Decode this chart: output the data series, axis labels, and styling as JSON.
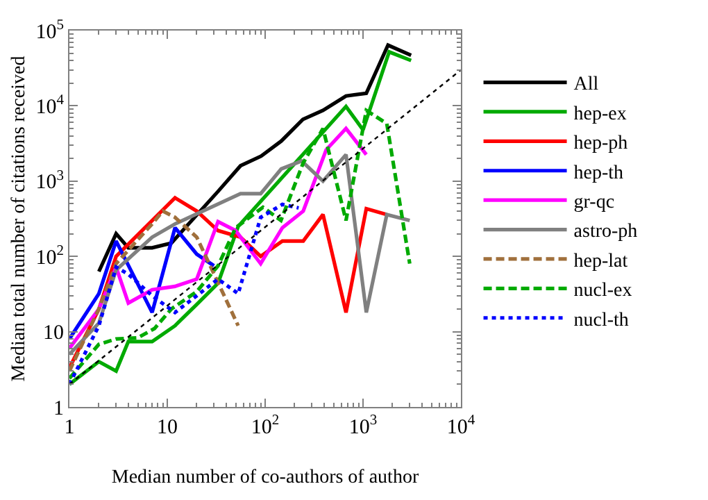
{
  "chart_data": {
    "type": "line",
    "xlabel": "Median number of co-authors of author",
    "ylabel": "Median total number of citations received",
    "log": "xy",
    "xlim": [
      1,
      10000
    ],
    "ylim": [
      1,
      100000
    ],
    "xticks": [
      1,
      10,
      {
        "value": 100,
        "label": "10$^{2}$"
      },
      {
        "value": 1000,
        "label": "10$^{3}$"
      },
      {
        "value": 10000,
        "label": "10$^{4}$"
      }
    ],
    "yticks": [
      1,
      10,
      {
        "value": 100,
        "label": "10$^{2}$"
      },
      {
        "value": 1000,
        "label": "10$^{3}$"
      },
      {
        "value": 10000,
        "label": "10$^{4}$"
      },
      {
        "value": 100000,
        "label": "10$^{5}$"
      }
    ],
    "legend": "right",
    "marker": "none",
    "series": [
      {
        "name": "All",
        "color": "#000000",
        "line_style": "solid",
        "x": [
          2,
          3,
          4,
          7,
          11,
          33,
          56,
          91,
          146,
          243,
          390,
          670,
          1080,
          1800,
          3100
        ],
        "values": [
          63,
          200,
          130,
          130,
          150,
          730,
          1600,
          2150,
          3400,
          6600,
          8700,
          13500,
          14700,
          64000,
          47000
        ]
      },
      {
        "name": "hep-ex",
        "color": "#00aa00",
        "line_style": "solid",
        "x": [
          1,
          2,
          3,
          4,
          7,
          12,
          20,
          33,
          53,
          670,
          1000,
          1850,
          3100
        ],
        "values": [
          2,
          4,
          3,
          7.4,
          7.4,
          12,
          23,
          44,
          250,
          9800,
          4800,
          52000,
          40000
        ]
      },
      {
        "name": "hep-ph",
        "color": "#ff0000",
        "line_style": "solid",
        "x": [
          1,
          2,
          3,
          12,
          20,
          33,
          56,
          90,
          150,
          245,
          390,
          670,
          1080,
          1750
        ],
        "values": [
          3.3,
          20,
          100,
          600,
          400,
          220,
          180,
          100,
          160,
          160,
          360,
          18,
          430,
          360
        ]
      },
      {
        "name": "hep-th",
        "color": "#0000ff",
        "line_style": "solid",
        "x": [
          1,
          2,
          3,
          7,
          12,
          20,
          30
        ],
        "values": [
          8,
          32,
          160,
          18,
          240,
          107,
          75
        ]
      },
      {
        "name": "gr-qc",
        "color": "#ff00ff",
        "line_style": "solid",
        "x": [
          1,
          2,
          3,
          4,
          7,
          12,
          20,
          33,
          50,
          90,
          150,
          245,
          420,
          670,
          1080
        ],
        "values": [
          6,
          20,
          72,
          24,
          36,
          40,
          50,
          290,
          220,
          80,
          240,
          400,
          2600,
          5000,
          2250
        ]
      },
      {
        "name": "astro-ph",
        "color": "#808080",
        "line_style": "solid",
        "x": [
          1,
          2,
          3,
          7,
          12,
          56,
          90,
          146,
          236,
          390,
          670,
          1080,
          1750,
          3000
        ],
        "values": [
          5,
          13,
          66,
          180,
          270,
          680,
          680,
          1450,
          1850,
          1000,
          2250,
          18,
          360,
          300
        ]
      },
      {
        "name": "hep-lat",
        "color": "#a0703c",
        "line_style": "dashed",
        "x": [
          1,
          2,
          3,
          7,
          9,
          12,
          20,
          33,
          53
        ],
        "values": [
          3,
          20,
          80,
          270,
          400,
          330,
          180,
          45,
          12
        ]
      },
      {
        "name": "nucl-ex",
        "color": "#00aa00",
        "line_style": "dashed",
        "x": [
          1,
          2,
          3,
          5,
          7.4,
          11,
          20,
          33,
          50,
          95,
          145,
          245,
          390,
          670,
          1080,
          1750,
          3000
        ],
        "values": [
          2.4,
          6.8,
          8,
          8.3,
          11,
          20,
          34,
          75,
          240,
          450,
          300,
          1750,
          5000,
          300,
          8700,
          5800,
          80
        ]
      },
      {
        "name": "nucl-th",
        "color": "#0000ff",
        "line_style": "dotted",
        "x": [
          1,
          2,
          3,
          4,
          7,
          12,
          20,
          33,
          53,
          90,
          150,
          220
        ],
        "values": [
          2,
          12,
          72,
          58,
          30,
          18,
          30,
          50,
          32,
          330,
          490,
          440
        ]
      },
      {
        "color": "#000000",
        "line_style": "dotted",
        "x": [
          1,
          10000
        ],
        "values": [
          2,
          30000
        ]
      }
    ]
  }
}
